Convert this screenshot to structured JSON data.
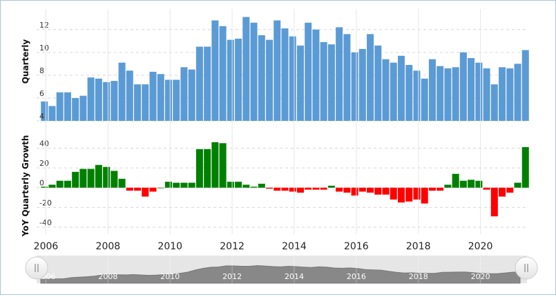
{
  "chart_data": [
    {
      "type": "bar",
      "ylabel": "Quarterly",
      "ylim": [
        4,
        13.8
      ],
      "yticks": [
        4,
        6,
        8,
        10,
        12
      ],
      "grid": true,
      "bar_color": "#5b9bd5",
      "x_start": 2005.95,
      "x_step": 0.25,
      "values": [
        5.7,
        5.3,
        6.5,
        6.5,
        6.0,
        6.2,
        7.8,
        7.7,
        7.4,
        7.5,
        9.1,
        8.4,
        7.2,
        7.2,
        8.3,
        8.1,
        7.6,
        7.6,
        8.7,
        8.5,
        10.5,
        10.5,
        12.8,
        12.3,
        11.1,
        11.2,
        13.1,
        12.6,
        11.5,
        11.1,
        12.8,
        12.1,
        11.4,
        10.6,
        12.6,
        12.0,
        10.9,
        10.7,
        12.2,
        11.6,
        10.0,
        10.3,
        11.6,
        10.6,
        9.4,
        9.1,
        9.7,
        8.9,
        8.4,
        7.7,
        9.4,
        8.8,
        8.6,
        8.7,
        10.0,
        9.5,
        9.1,
        8.6,
        7.2,
        8.7,
        8.6,
        9.0,
        10.2
      ]
    },
    {
      "type": "bar",
      "ylabel": "YoY Quarterly Growth",
      "ylim": [
        -47,
        55
      ],
      "yticks": [
        -40,
        -20,
        0,
        20,
        40
      ],
      "grid": true,
      "positive_color": "#008000",
      "negative_color": "#ff0000",
      "x_start": 2005.95,
      "x_step": 0.25,
      "values": [
        1,
        3,
        7,
        7,
        16,
        19,
        19,
        23,
        21,
        17,
        9,
        -3,
        -3,
        -9,
        -4,
        0,
        6,
        5,
        5,
        5,
        39,
        39,
        46,
        45,
        6,
        6,
        3,
        1,
        4,
        -1,
        -3,
        -3,
        -4,
        -5,
        -2,
        -2,
        -2,
        2,
        -4,
        -5,
        -8,
        -4,
        -5,
        -7,
        -7,
        -12,
        -15,
        -14,
        -12,
        -16,
        -3,
        -3,
        3,
        14,
        7,
        8,
        7,
        -2,
        -29,
        -9,
        -5,
        5,
        41
      ]
    }
  ],
  "x_axis": {
    "tick_labels": [
      "2006",
      "2008",
      "2010",
      "2012",
      "2014",
      "2016",
      "2018",
      "2020"
    ],
    "tick_values": [
      2006,
      2008,
      2010,
      2012,
      2014,
      2016,
      2018,
      2020
    ],
    "xlim": [
      2005.7,
      2021.5
    ]
  },
  "navigator": {
    "tick_labels": [
      "2006",
      "2008",
      "2010",
      "2012",
      "2014",
      "2016",
      "2018",
      "2020"
    ],
    "handle_left_icon": "grip-lines-icon",
    "handle_right_icon": "grip-lines-icon",
    "area_color": "#888888",
    "track_color": "#e6e6e6"
  }
}
